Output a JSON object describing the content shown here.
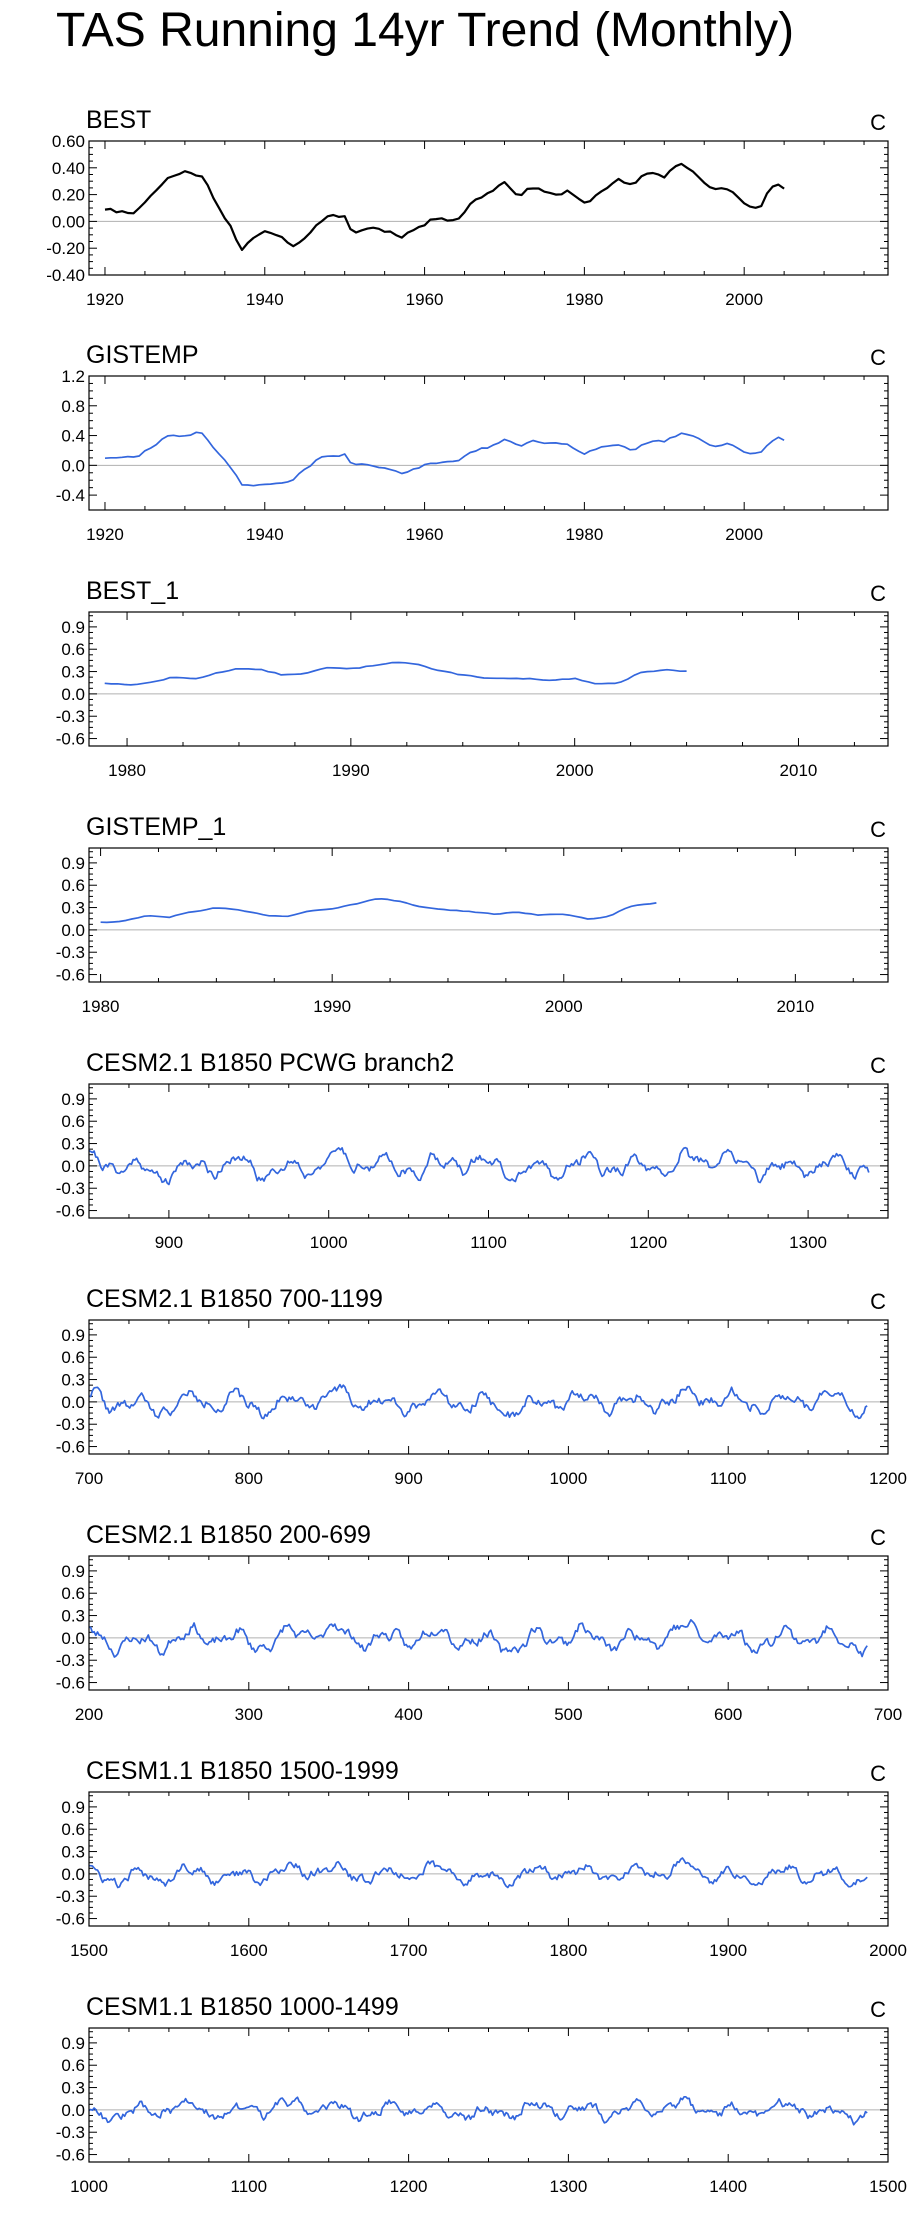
{
  "title": "TAS Running 14yr Trend (Monthly)",
  "colors": {
    "observed": "#000000",
    "model": "#3366dd",
    "zero_line": "#b0b0b0",
    "frame": "#000000"
  },
  "chart_data": [
    {
      "type": "line",
      "title": "BEST",
      "units": "C",
      "series_color": "#000000",
      "xlim": [
        1918,
        2018
      ],
      "ylim": [
        -0.4,
        0.6
      ],
      "xticks": [
        1920,
        1940,
        1960,
        1980,
        2000
      ],
      "yticks": [
        -0.4,
        -0.2,
        0.0,
        0.2,
        0.4,
        0.6
      ],
      "ytick_labels": [
        "-0.40",
        "-0.20",
        "0.00",
        "0.20",
        "0.40",
        "0.60"
      ],
      "x_range": [
        1920,
        2005
      ],
      "samples": 120,
      "seed": 11,
      "anchors": [
        [
          1920,
          0.08
        ],
        [
          1922,
          0.07
        ],
        [
          1924,
          0.08
        ],
        [
          1926,
          0.22
        ],
        [
          1928,
          0.33
        ],
        [
          1930,
          0.37
        ],
        [
          1932,
          0.35
        ],
        [
          1934,
          0.14
        ],
        [
          1936,
          -0.05
        ],
        [
          1937,
          -0.2
        ],
        [
          1939,
          -0.12
        ],
        [
          1941,
          -0.08
        ],
        [
          1942,
          -0.12
        ],
        [
          1944,
          -0.18
        ],
        [
          1946,
          -0.05
        ],
        [
          1948,
          0.02
        ],
        [
          1950,
          0.04
        ],
        [
          1951,
          -0.1
        ],
        [
          1953,
          -0.04
        ],
        [
          1955,
          -0.06
        ],
        [
          1957,
          -0.1
        ],
        [
          1960,
          -0.02
        ],
        [
          1962,
          0.04
        ],
        [
          1964,
          0.02
        ],
        [
          1966,
          0.15
        ],
        [
          1968,
          0.22
        ],
        [
          1970,
          0.3
        ],
        [
          1972,
          0.2
        ],
        [
          1974,
          0.27
        ],
        [
          1976,
          0.2
        ],
        [
          1978,
          0.22
        ],
        [
          1980,
          0.12
        ],
        [
          1982,
          0.22
        ],
        [
          1984,
          0.32
        ],
        [
          1986,
          0.25
        ],
        [
          1988,
          0.36
        ],
        [
          1990,
          0.34
        ],
        [
          1992,
          0.45
        ],
        [
          1994,
          0.35
        ],
        [
          1996,
          0.22
        ],
        [
          1998,
          0.25
        ],
        [
          2000,
          0.12
        ],
        [
          2002,
          0.1
        ],
        [
          2003,
          0.25
        ],
        [
          2004,
          0.32
        ],
        [
          2005,
          0.28
        ]
      ],
      "noise": 0.018
    },
    {
      "type": "line",
      "title": "GISTEMP",
      "units": "C",
      "series_color": "#3366dd",
      "xlim": [
        1918,
        2018
      ],
      "ylim": [
        -0.6,
        1.2
      ],
      "xticks": [
        1920,
        1940,
        1960,
        1980,
        2000
      ],
      "yticks": [
        -0.4,
        0.0,
        0.4,
        0.8,
        1.2
      ],
      "ytick_labels": [
        "-0.4",
        "0.0",
        "0.4",
        "0.8",
        "1.2"
      ],
      "x_range": [
        1920,
        2005
      ],
      "samples": 120,
      "seed": 12,
      "anchors": [
        [
          1920,
          0.1
        ],
        [
          1922,
          0.1
        ],
        [
          1924,
          0.12
        ],
        [
          1926,
          0.25
        ],
        [
          1928,
          0.42
        ],
        [
          1930,
          0.38
        ],
        [
          1932,
          0.45
        ],
        [
          1934,
          0.2
        ],
        [
          1936,
          -0.05
        ],
        [
          1937,
          -0.25
        ],
        [
          1940,
          -0.28
        ],
        [
          1943,
          -0.25
        ],
        [
          1945,
          -0.05
        ],
        [
          1947,
          0.12
        ],
        [
          1950,
          0.15
        ],
        [
          1951,
          0.0
        ],
        [
          1953,
          0.0
        ],
        [
          1955,
          -0.05
        ],
        [
          1957,
          -0.1
        ],
        [
          1960,
          0.0
        ],
        [
          1962,
          0.05
        ],
        [
          1964,
          0.08
        ],
        [
          1966,
          0.2
        ],
        [
          1968,
          0.25
        ],
        [
          1970,
          0.35
        ],
        [
          1972,
          0.25
        ],
        [
          1974,
          0.32
        ],
        [
          1976,
          0.28
        ],
        [
          1978,
          0.25
        ],
        [
          1980,
          0.15
        ],
        [
          1982,
          0.25
        ],
        [
          1984,
          0.3
        ],
        [
          1986,
          0.22
        ],
        [
          1988,
          0.32
        ],
        [
          1990,
          0.3
        ],
        [
          1992,
          0.42
        ],
        [
          1994,
          0.35
        ],
        [
          1996,
          0.25
        ],
        [
          1998,
          0.28
        ],
        [
          2000,
          0.18
        ],
        [
          2002,
          0.15
        ],
        [
          2003,
          0.3
        ],
        [
          2004,
          0.38
        ],
        [
          2005,
          0.35
        ]
      ],
      "noise": 0.02
    },
    {
      "type": "line",
      "title": "BEST_1",
      "units": "C",
      "series_color": "#3366dd",
      "xlim": [
        1978.3,
        2014
      ],
      "ylim": [
        -0.7,
        1.1
      ],
      "xticks": [
        1980,
        1990,
        2000,
        2010
      ],
      "yticks": [
        -0.6,
        -0.3,
        0.0,
        0.3,
        0.6,
        0.9
      ],
      "ytick_labels": [
        "-0.6",
        "-0.3",
        "0.0",
        "0.3",
        "0.6",
        "0.9"
      ],
      "x_range": [
        1979,
        2005
      ],
      "samples": 90,
      "seed": 13,
      "anchors": [
        [
          1979,
          0.15
        ],
        [
          1980,
          0.12
        ],
        [
          1981,
          0.15
        ],
        [
          1982,
          0.22
        ],
        [
          1983,
          0.2
        ],
        [
          1984,
          0.28
        ],
        [
          1985,
          0.35
        ],
        [
          1986,
          0.32
        ],
        [
          1987,
          0.25
        ],
        [
          1988,
          0.28
        ],
        [
          1989,
          0.35
        ],
        [
          1990,
          0.33
        ],
        [
          1991,
          0.38
        ],
        [
          1992,
          0.44
        ],
        [
          1993,
          0.4
        ],
        [
          1994,
          0.3
        ],
        [
          1995,
          0.25
        ],
        [
          1996,
          0.22
        ],
        [
          1997,
          0.2
        ],
        [
          1998,
          0.2
        ],
        [
          1999,
          0.17
        ],
        [
          2000,
          0.2
        ],
        [
          2001,
          0.12
        ],
        [
          2002,
          0.15
        ],
        [
          2003,
          0.3
        ],
        [
          2004,
          0.33
        ],
        [
          2005,
          0.3
        ]
      ],
      "noise": 0.008
    },
    {
      "type": "line",
      "title": "GISTEMP_1",
      "units": "C",
      "series_color": "#3366dd",
      "xlim": [
        1979.5,
        2014
      ],
      "ylim": [
        -0.7,
        1.1
      ],
      "xticks": [
        1980,
        1990,
        2000,
        2010
      ],
      "yticks": [
        -0.6,
        -0.3,
        0.0,
        0.3,
        0.6,
        0.9
      ],
      "ytick_labels": [
        "-0.6",
        "-0.3",
        "0.0",
        "0.3",
        "0.6",
        "0.9"
      ],
      "x_range": [
        1980,
        2004
      ],
      "samples": 90,
      "seed": 14,
      "anchors": [
        [
          1980,
          0.1
        ],
        [
          1981,
          0.12
        ],
        [
          1982,
          0.2
        ],
        [
          1983,
          0.18
        ],
        [
          1984,
          0.25
        ],
        [
          1985,
          0.3
        ],
        [
          1986,
          0.27
        ],
        [
          1987,
          0.2
        ],
        [
          1988,
          0.17
        ],
        [
          1989,
          0.25
        ],
        [
          1990,
          0.28
        ],
        [
          1991,
          0.35
        ],
        [
          1992,
          0.42
        ],
        [
          1993,
          0.38
        ],
        [
          1994,
          0.3
        ],
        [
          1995,
          0.27
        ],
        [
          1996,
          0.25
        ],
        [
          1997,
          0.22
        ],
        [
          1998,
          0.25
        ],
        [
          1999,
          0.2
        ],
        [
          2000,
          0.22
        ],
        [
          2001,
          0.15
        ],
        [
          2002,
          0.18
        ],
        [
          2003,
          0.33
        ],
        [
          2004,
          0.36
        ]
      ],
      "noise": 0.008
    },
    {
      "type": "line",
      "title": "CESM2.1 B1850 PCWG branch2",
      "units": "C",
      "series_color": "#3366dd",
      "xlim": [
        850,
        1350
      ],
      "ylim": [
        -0.7,
        1.1
      ],
      "xticks": [
        900,
        1000,
        1100,
        1200,
        1300
      ],
      "yticks": [
        -0.6,
        -0.3,
        0.0,
        0.3,
        0.6,
        0.9
      ],
      "ytick_labels": [
        "-0.6",
        "-0.3",
        "0.0",
        "0.3",
        "0.6",
        "0.9"
      ],
      "x_range": [
        850,
        1338
      ],
      "samples": 460,
      "seed": 21,
      "osc_amp": 0.17,
      "noise": 0.05
    },
    {
      "type": "line",
      "title": "CESM2.1 B1850 700-1199",
      "units": "C",
      "series_color": "#3366dd",
      "xlim": [
        700,
        1200
      ],
      "ylim": [
        -0.7,
        1.1
      ],
      "xticks": [
        700,
        800,
        900,
        1000,
        1100,
        1200
      ],
      "yticks": [
        -0.6,
        -0.3,
        0.0,
        0.3,
        0.6,
        0.9
      ],
      "ytick_labels": [
        "-0.6",
        "-0.3",
        "0.0",
        "0.3",
        "0.6",
        "0.9"
      ],
      "x_range": [
        700,
        1187
      ],
      "samples": 460,
      "seed": 22,
      "osc_amp": 0.16,
      "noise": 0.05
    },
    {
      "type": "line",
      "title": "CESM2.1 B1850 200-699",
      "units": "C",
      "series_color": "#3366dd",
      "xlim": [
        200,
        700
      ],
      "ylim": [
        -0.7,
        1.1
      ],
      "xticks": [
        200,
        300,
        400,
        500,
        600,
        700
      ],
      "yticks": [
        -0.6,
        -0.3,
        0.0,
        0.3,
        0.6,
        0.9
      ],
      "ytick_labels": [
        "-0.6",
        "-0.3",
        "0.0",
        "0.3",
        "0.6",
        "0.9"
      ],
      "x_range": [
        200,
        687
      ],
      "samples": 460,
      "seed": 23,
      "osc_amp": 0.17,
      "noise": 0.05
    },
    {
      "type": "line",
      "title": "CESM1.1 B1850 1500-1999",
      "units": "C",
      "series_color": "#3366dd",
      "xlim": [
        1500,
        2000
      ],
      "ylim": [
        -0.7,
        1.1
      ],
      "xticks": [
        1500,
        1600,
        1700,
        1800,
        1900,
        2000
      ],
      "yticks": [
        -0.6,
        -0.3,
        0.0,
        0.3,
        0.6,
        0.9
      ],
      "ytick_labels": [
        "-0.6",
        "-0.3",
        "0.0",
        "0.3",
        "0.6",
        "0.9"
      ],
      "x_range": [
        1500,
        1987
      ],
      "samples": 460,
      "seed": 24,
      "osc_amp": 0.13,
      "noise": 0.045
    },
    {
      "type": "line",
      "title": "CESM1.1 B1850 1000-1499",
      "units": "C",
      "series_color": "#3366dd",
      "xlim": [
        1000,
        1500
      ],
      "ylim": [
        -0.7,
        1.1
      ],
      "xticks": [
        1000,
        1100,
        1200,
        1300,
        1400,
        1500
      ],
      "yticks": [
        -0.6,
        -0.3,
        0.0,
        0.3,
        0.6,
        0.9
      ],
      "ytick_labels": [
        "-0.6",
        "-0.3",
        "0.0",
        "0.3",
        "0.6",
        "0.9"
      ],
      "x_range": [
        1000,
        1487
      ],
      "samples": 460,
      "seed": 25,
      "osc_amp": 0.12,
      "noise": 0.045
    }
  ]
}
